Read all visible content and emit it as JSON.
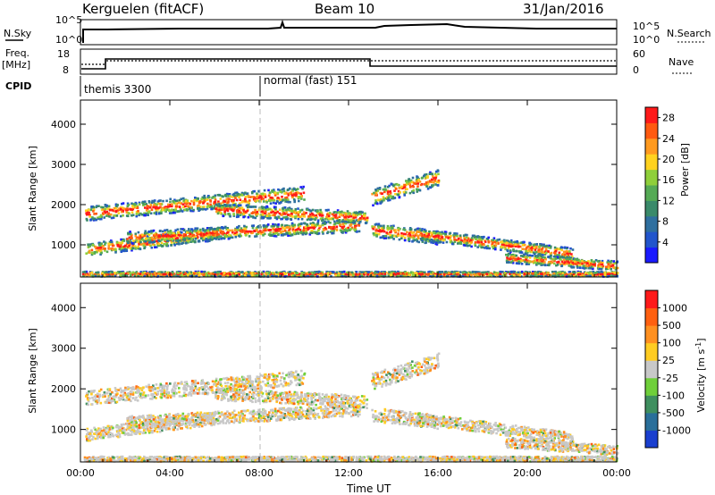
{
  "header": {
    "station": "Kerguelen (fitACF)",
    "beam": "Beam 10",
    "date": "31/Jan/2016"
  },
  "panels": {
    "nsky": {
      "label": "N.Sky",
      "right_label": "N.Search",
      "tick_top": "10^5",
      "tick_bottom": "10^0",
      "right_tick_top": "10^5",
      "right_tick_bottom": "10^0"
    },
    "freq": {
      "label_line1": "Freq.",
      "label_line2": "[MHz]",
      "right_label": "Nave",
      "ticks_left": [
        "18",
        "8"
      ],
      "ticks_right": [
        "60",
        "0"
      ]
    },
    "cpid": {
      "label": "CPID",
      "modes": [
        "themis 3300",
        "normal (fast) 151"
      ]
    }
  },
  "chart_data": [
    {
      "type": "heatmap",
      "title": "",
      "xlabel": "",
      "ylabel": "Slant Range [km]",
      "x_ticks": [
        "00:00",
        "04:00",
        "08:00",
        "12:00",
        "16:00",
        "20:00",
        "00:00"
      ],
      "y_ticks": [
        1000,
        2000,
        3000,
        4000
      ],
      "ylim": [
        200,
        4600
      ],
      "xlim_hours": [
        0,
        24
      ],
      "colorbar": {
        "label": "Power [dB]",
        "ticks": [
          4,
          8,
          12,
          16,
          20,
          24,
          28
        ],
        "range": [
          0,
          30
        ],
        "colors": [
          "#1a1aff",
          "#2255cc",
          "#2f6f9f",
          "#3a8a6a",
          "#55aa55",
          "#8fcf3a",
          "#ffd21f",
          "#ff9a1f",
          "#ff5a10",
          "#ff1a1a"
        ]
      }
    },
    {
      "type": "heatmap",
      "title": "",
      "xlabel": "Time UT",
      "ylabel": "Slant Range [km]",
      "x_ticks": [
        "00:00",
        "04:00",
        "08:00",
        "12:00",
        "16:00",
        "20:00",
        "00:00"
      ],
      "y_ticks": [
        1000,
        2000,
        3000,
        4000
      ],
      "ylim": [
        200,
        4600
      ],
      "xlim_hours": [
        0,
        24
      ],
      "colorbar": {
        "label": "Velocity [m s",
        "label_sup": "-1",
        "label_end": "]",
        "ticks": [
          "1000",
          "500",
          "100",
          "25",
          "-25",
          "-100",
          "-500",
          "-1000"
        ],
        "colors": [
          "#1a3fcf",
          "#2a6f9a",
          "#3f8f5f",
          "#6fcf3a",
          "#c8c8c8",
          "#ffcc22",
          "#ff9020",
          "#ff6010",
          "#ff1a1a"
        ]
      }
    }
  ]
}
